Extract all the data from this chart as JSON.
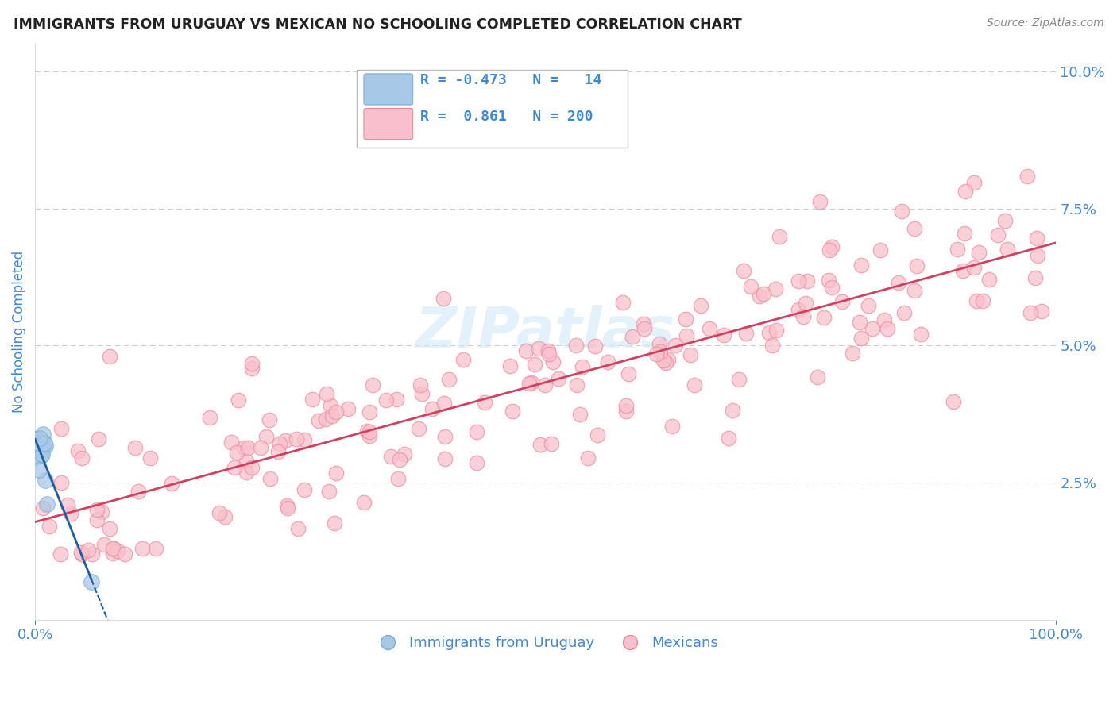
{
  "title": "IMMIGRANTS FROM URUGUAY VS MEXICAN NO SCHOOLING COMPLETED CORRELATION CHART",
  "source": "Source: ZipAtlas.com",
  "ylabel": "No Schooling Completed",
  "xlim": [
    0.0,
    1.0
  ],
  "ylim": [
    0.0,
    0.105
  ],
  "yticks": [
    0.0,
    0.025,
    0.05,
    0.075,
    0.1
  ],
  "ytick_labels": [
    "",
    "2.5%",
    "5.0%",
    "7.5%",
    "10.0%"
  ],
  "legend_r_blue": "-0.473",
  "legend_n_blue": "14",
  "legend_r_pink": "0.861",
  "legend_n_pink": "200",
  "blue_scatter_color": "#a8c8e8",
  "blue_scatter_edge": "#7aafd0",
  "pink_scatter_color": "#f8c0cc",
  "pink_scatter_edge": "#e88898",
  "blue_line_color": "#1a5fa0",
  "pink_line_color": "#d04060",
  "axis_label_color": "#4488cc",
  "ylabel_color": "#4488cc",
  "title_color": "#222222",
  "source_color": "#888888",
  "watermark_color": "#d0e8f8",
  "background_color": "#ffffff",
  "grid_color": "#cccccc",
  "legend_box_color": "#dddddd",
  "watermark_text": "ZIPatlas"
}
